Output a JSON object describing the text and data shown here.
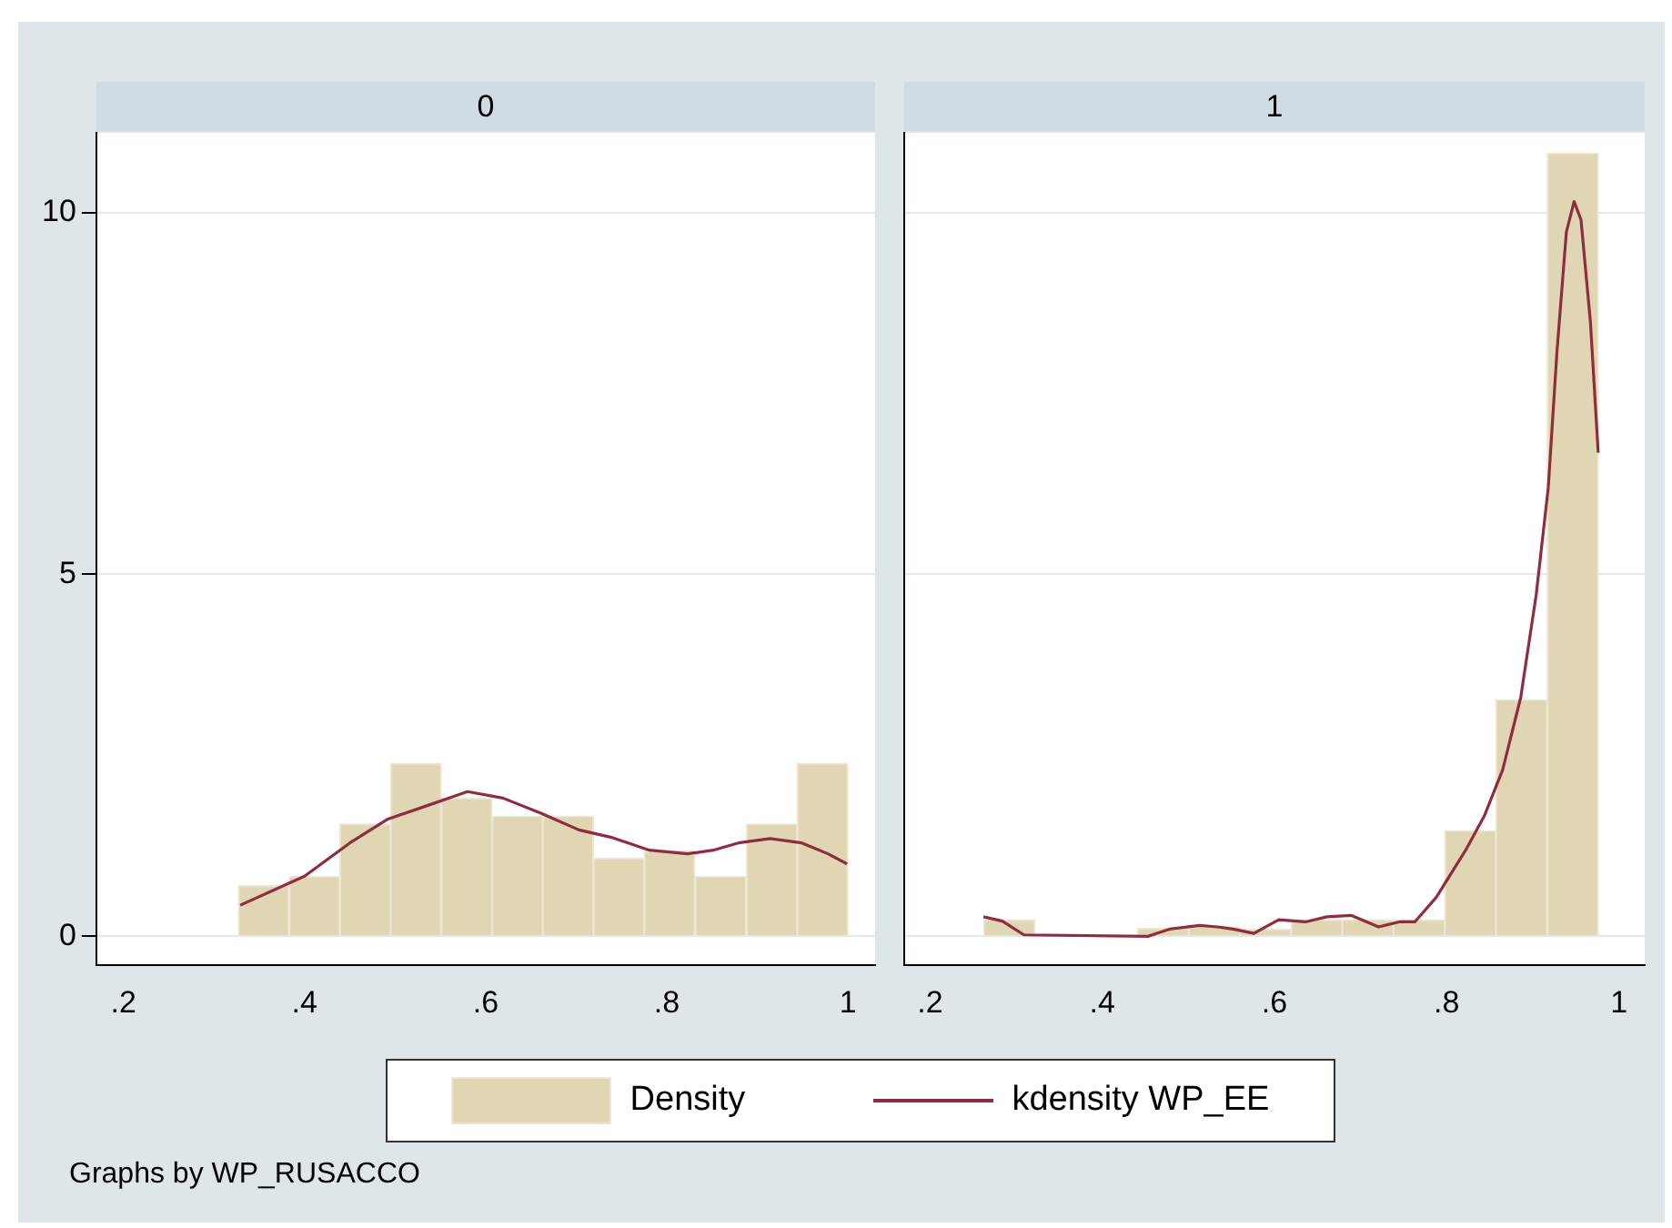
{
  "chart_data": [
    {
      "type": "histogram",
      "title": "0",
      "xlim": [
        0.17,
        1.03
      ],
      "xticks": [
        {
          "value": 0.2,
          "label": ".2"
        },
        {
          "value": 0.4,
          "label": ".4"
        },
        {
          "value": 0.6,
          "label": ".6"
        },
        {
          "value": 0.8,
          "label": ".8"
        },
        1
      ],
      "ylim": [
        -0.4,
        11.1
      ],
      "yticks": [
        0,
        5,
        10
      ],
      "grid": "y",
      "legend": "bottom",
      "annotations": [
        "Graphs by WP_RUSACCO"
      ],
      "series": [
        {
          "name": "Density",
          "color": "#e0d6b4",
          "bins": [
            0.327,
            0.383,
            0.439,
            0.495,
            0.551,
            0.607,
            0.663,
            0.719,
            0.775,
            0.831,
            0.888,
            0.944,
            1.0
          ],
          "values": [
            0.7,
            0.83,
            1.55,
            2.39,
            1.91,
            1.66,
            1.66,
            1.08,
            1.18,
            0.83,
            1.55,
            2.39
          ]
        },
        {
          "name": "kdensity WP_EE",
          "type": "line",
          "color": "#8f2d3c",
          "x": [
            0.329,
            0.4,
            0.45,
            0.492,
            0.534,
            0.58,
            0.619,
            0.661,
            0.703,
            0.738,
            0.781,
            0.823,
            0.851,
            0.879,
            0.914,
            0.949,
            0.978,
            0.999
          ],
          "values": [
            0.43,
            0.83,
            1.29,
            1.62,
            1.8,
            2.0,
            1.91,
            1.7,
            1.47,
            1.37,
            1.19,
            1.14,
            1.19,
            1.29,
            1.35,
            1.29,
            1.14,
            1.0
          ]
        }
      ]
    },
    {
      "type": "histogram",
      "title": "1",
      "xlim": [
        0.17,
        1.03
      ],
      "xticks": [
        {
          "value": 0.2,
          "label": ".2"
        },
        {
          "value": 0.4,
          "label": ".4"
        },
        {
          "value": 0.6,
          "label": ".6"
        },
        {
          "value": 0.8,
          "label": ".8"
        },
        1
      ],
      "ylim": [
        -0.4,
        11.1
      ],
      "yticks": [
        0,
        5,
        10
      ],
      "grid": "y",
      "tick_labels": "x",
      "series": [
        {
          "color": "#e0d6b4",
          "bins": [
            0.262,
            0.322,
            0.381,
            0.441,
            0.5,
            0.56,
            0.619,
            0.679,
            0.738,
            0.798,
            0.857,
            0.917,
            0.976
          ],
          "values": [
            0.23,
            0,
            0,
            0.11,
            0.13,
            0.1,
            0.23,
            0.23,
            0.23,
            1.46,
            3.27,
            10.82
          ]
        },
        {
          "type": "line",
          "color": "#8f2d3c",
          "x": [
            0.262,
            0.284,
            0.309,
            0.453,
            0.478,
            0.513,
            0.534,
            0.552,
            0.576,
            0.605,
            0.636,
            0.661,
            0.689,
            0.721,
            0.745,
            0.763,
            0.788,
            0.823,
            0.844,
            0.865,
            0.886,
            0.904,
            0.918,
            0.928,
            0.939,
            0.948,
            0.956,
            0.967,
            0.976
          ],
          "values": [
            0.27,
            0.21,
            0.02,
            0,
            0.1,
            0.15,
            0.13,
            0.1,
            0.04,
            0.23,
            0.2,
            0.27,
            0.29,
            0.13,
            0.2,
            0.2,
            0.54,
            1.21,
            1.67,
            2.3,
            3.3,
            4.72,
            6.2,
            8.06,
            9.73,
            10.15,
            9.9,
            8.48,
            6.68
          ]
        }
      ]
    }
  ]
}
